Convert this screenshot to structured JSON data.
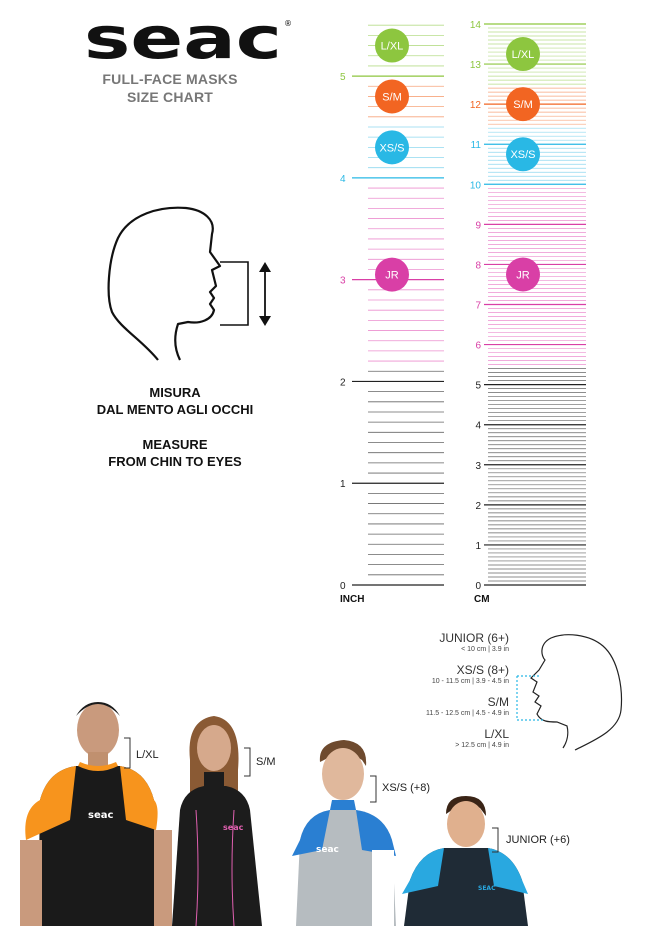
{
  "brand": {
    "logo_text": "seac",
    "registered": "®"
  },
  "subtitle": {
    "line1": "FULL-FACE MASKS",
    "line2": "SIZE CHART"
  },
  "measure_it": {
    "line1": "MISURA",
    "line2": "DAL MENTO AGLI OCCHI"
  },
  "measure_en": {
    "line1": "MEASURE",
    "line2": "FROM CHIN TO EYES"
  },
  "colors": {
    "lxl": "#8dc63f",
    "sm": "#f26522",
    "xss": "#29b8e5",
    "jr": "#d93fa6",
    "base": "#222222",
    "faint_lxl": "#b7dd8a",
    "faint_sm": "#f7a57c",
    "faint_xss": "#8fd8ef",
    "faint_jr": "#ec8fcf",
    "faint_base": "#666666"
  },
  "inch_ruler": {
    "unit_label": "INCH",
    "ticks": [
      "0",
      "1",
      "2",
      "3",
      "4",
      "5"
    ],
    "badges": [
      {
        "label": "L/XL",
        "value": 5.3,
        "color_key": "lxl"
      },
      {
        "label": "S/M",
        "value": 4.8,
        "color_key": "sm"
      },
      {
        "label": "XS/S",
        "value": 4.3,
        "color_key": "xss"
      },
      {
        "label": "JR",
        "value": 3.05,
        "color_key": "jr"
      }
    ]
  },
  "cm_ruler": {
    "unit_label": "CM",
    "ticks": [
      "0",
      "1",
      "2",
      "3",
      "4",
      "5",
      "6",
      "7",
      "8",
      "9",
      "10",
      "11",
      "12",
      "13",
      "14"
    ],
    "badges": [
      {
        "label": "L/XL",
        "value": 13.25,
        "color_key": "lxl"
      },
      {
        "label": "S/M",
        "value": 12.0,
        "color_key": "sm"
      },
      {
        "label": "XS/S",
        "value": 10.75,
        "color_key": "xss"
      },
      {
        "label": "JR",
        "value": 7.75,
        "color_key": "jr"
      }
    ]
  },
  "legend": [
    {
      "title": "JUNIOR (6+)",
      "sub": "< 10 cm | 3.9 in"
    },
    {
      "title": "XS/S (8+)",
      "sub": "10 - 11.5 cm | 3.9 - 4.5 in"
    },
    {
      "title": "S/M",
      "sub": "11.5 - 12.5 cm | 4.5 - 4.9 in"
    },
    {
      "title": "L/XL",
      "sub": "> 12.5 cm | 4.9 in"
    }
  ],
  "people": [
    {
      "label": "L/XL",
      "shirt_text": "seac"
    },
    {
      "label": "S/M",
      "shirt_text": "seac"
    },
    {
      "label": "XS/S (+8)",
      "shirt_text": "seac"
    },
    {
      "label": "JUNIOR (+6)",
      "shirt_text": "SEAC"
    }
  ]
}
